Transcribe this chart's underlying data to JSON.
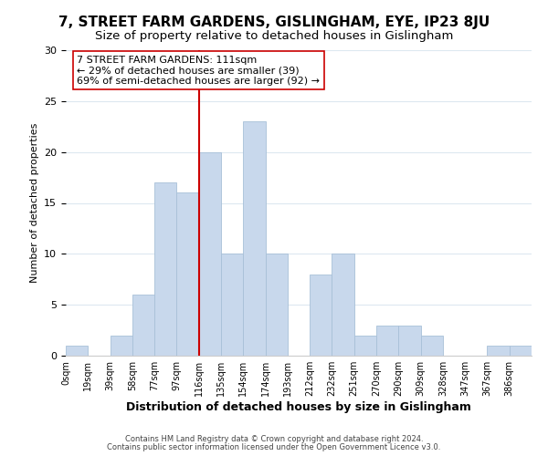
{
  "title1": "7, STREET FARM GARDENS, GISLINGHAM, EYE, IP23 8JU",
  "title2": "Size of property relative to detached houses in Gislingham",
  "xlabel": "Distribution of detached houses by size in Gislingham",
  "ylabel": "Number of detached properties",
  "bin_labels": [
    "0sqm",
    "19sqm",
    "39sqm",
    "58sqm",
    "77sqm",
    "97sqm",
    "116sqm",
    "135sqm",
    "154sqm",
    "174sqm",
    "193sqm",
    "212sqm",
    "232sqm",
    "251sqm",
    "270sqm",
    "290sqm",
    "309sqm",
    "328sqm",
    "347sqm",
    "367sqm",
    "386sqm"
  ],
  "bar_heights": [
    1,
    0,
    2,
    6,
    17,
    16,
    20,
    10,
    23,
    10,
    0,
    8,
    10,
    2,
    3,
    3,
    2,
    0,
    0,
    1,
    1
  ],
  "bar_color": "#c8d8ec",
  "bar_edge_color": "#a8c0d8",
  "vline_x_index": 6,
  "vline_color": "#cc0000",
  "annotation_text": "7 STREET FARM GARDENS: 111sqm\n← 29% of detached houses are smaller (39)\n69% of semi-detached houses are larger (92) →",
  "annotation_box_color": "#ffffff",
  "annotation_box_edge_color": "#cc0000",
  "ylim": [
    0,
    30
  ],
  "yticks": [
    0,
    5,
    10,
    15,
    20,
    25,
    30
  ],
  "footer1": "Contains HM Land Registry data © Crown copyright and database right 2024.",
  "footer2": "Contains public sector information licensed under the Open Government Licence v3.0.",
  "bg_color": "#ffffff",
  "grid_color": "#dde8f0",
  "title1_fontsize": 11,
  "title2_fontsize": 9.5,
  "xlabel_fontsize": 9,
  "ylabel_fontsize": 8,
  "annotation_fontsize": 8,
  "footer_fontsize": 6
}
